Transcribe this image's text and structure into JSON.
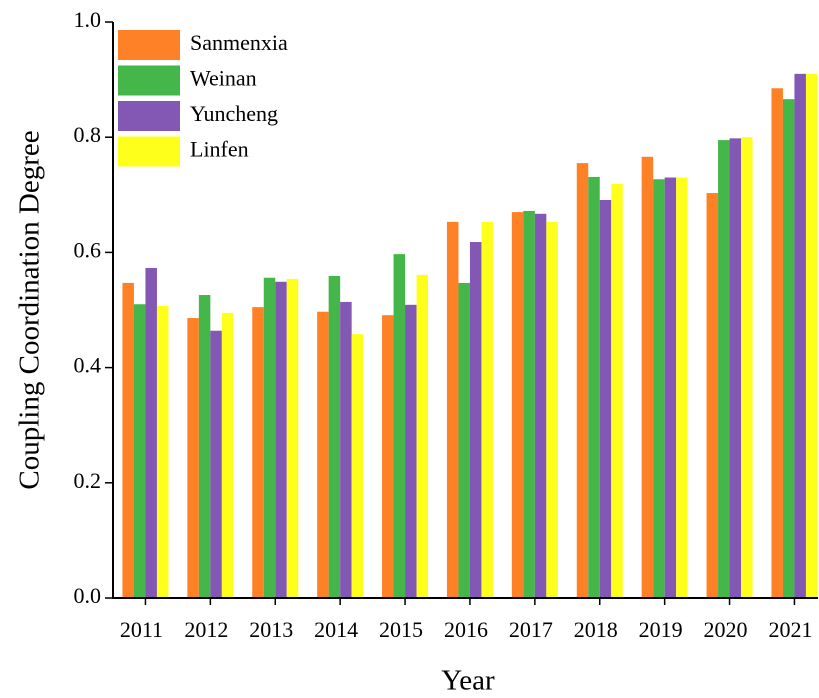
{
  "chart_data": {
    "type": "bar",
    "x_label": "Year",
    "y_label": "Coupling Coordination Degree",
    "categories": [
      "2011",
      "2012",
      "2013",
      "2014",
      "2015",
      "2016",
      "2017",
      "2018",
      "2019",
      "2020",
      "2021"
    ],
    "series": [
      {
        "name": "Sanmenxia",
        "color": "#ff8125",
        "values": [
          0.547,
          0.486,
          0.505,
          0.497,
          0.491,
          0.653,
          0.67,
          0.755,
          0.766,
          0.703,
          0.885
        ]
      },
      {
        "name": "Weinan",
        "color": "#45b649",
        "values": [
          0.51,
          0.526,
          0.556,
          0.559,
          0.597,
          0.547,
          0.672,
          0.731,
          0.727,
          0.795,
          0.866
        ]
      },
      {
        "name": "Yuncheng",
        "color": "#8357b4",
        "values": [
          0.573,
          0.464,
          0.549,
          0.514,
          0.509,
          0.618,
          0.667,
          0.691,
          0.73,
          0.798,
          0.91
        ]
      },
      {
        "name": "Linfen",
        "color": "#ffff1c",
        "values": [
          0.507,
          0.495,
          0.554,
          0.458,
          0.561,
          0.653,
          0.653,
          0.719,
          0.73,
          0.8,
          0.91
        ]
      }
    ],
    "ylim": [
      0,
      1
    ],
    "yticks": [
      {
        "value": 0,
        "label": "0.0"
      },
      0.2,
      0.4,
      0.6,
      0.8,
      {
        "value": 1,
        "label": "1.0"
      }
    ],
    "legend": "upper-left"
  }
}
